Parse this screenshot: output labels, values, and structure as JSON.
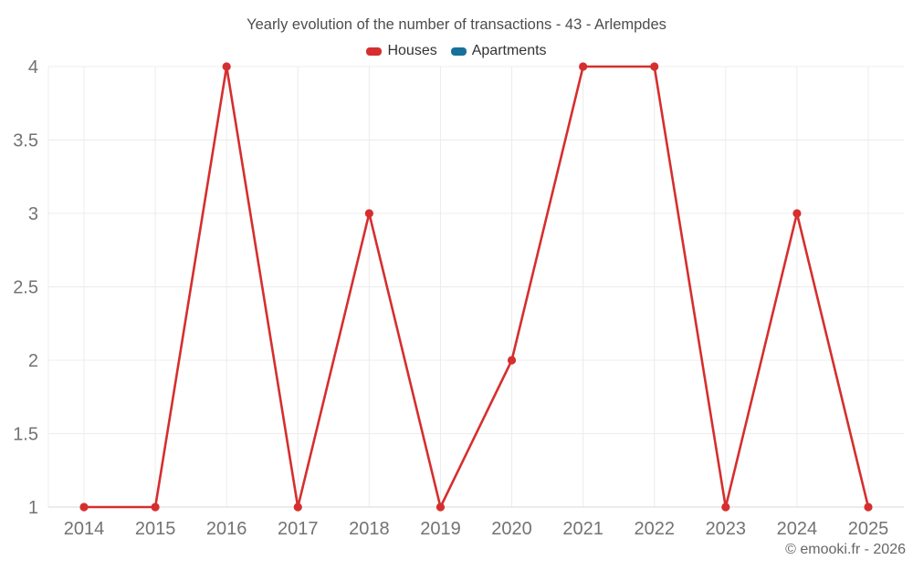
{
  "footer": "© emooki.fr - 2026",
  "colors": {
    "grid": "#ececec",
    "axis_line": "#d9d9d9",
    "tick_text": "#737373",
    "title_text": "#4d4d4d",
    "legend_text": "#333333",
    "footer_text": "#666666",
    "houses": "#d62e2e",
    "apartments": "#17709c"
  },
  "chart_data": {
    "type": "line",
    "title": "Yearly evolution of the number of transactions - 43 - Arlempdes",
    "xlabel": "",
    "ylabel": "",
    "categories": [
      "2014",
      "2015",
      "2016",
      "2017",
      "2018",
      "2019",
      "2020",
      "2021",
      "2022",
      "2023",
      "2024",
      "2025"
    ],
    "series": [
      {
        "name": "Houses",
        "color": "#d62e2e",
        "values": [
          1,
          1,
          4,
          1,
          3,
          1,
          2,
          4,
          4,
          1,
          3,
          1
        ]
      },
      {
        "name": "Apartments",
        "color": "#17709c",
        "values": []
      }
    ],
    "ylim": [
      1,
      4
    ],
    "yticks": [
      1,
      1.5,
      2,
      2.5,
      3,
      3.5,
      4
    ],
    "grid": true,
    "legend_position": "top",
    "markers": true
  }
}
